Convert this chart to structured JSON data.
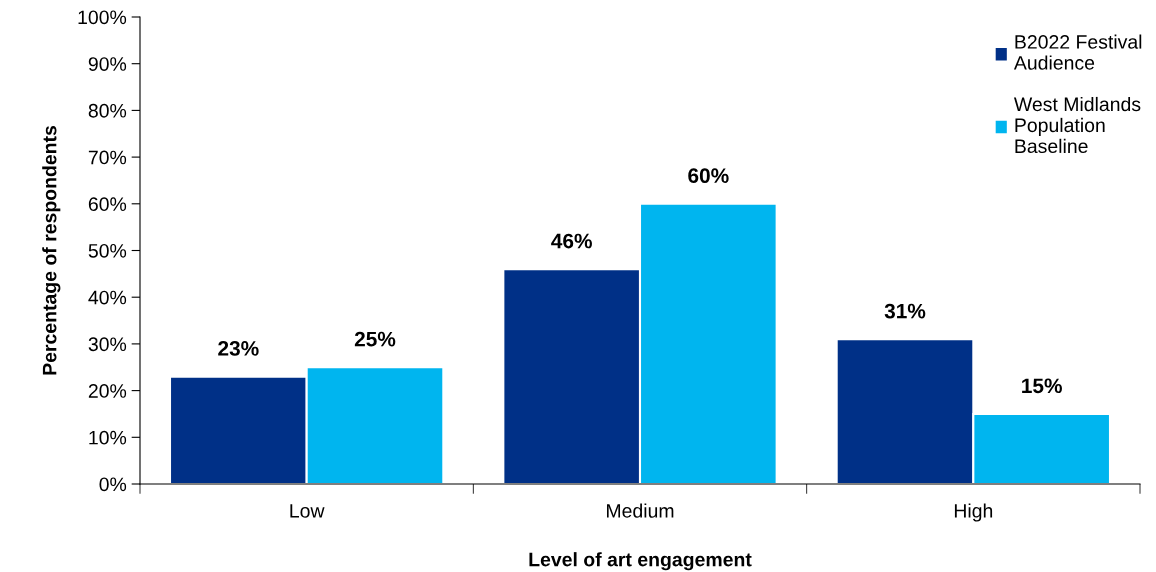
{
  "chart_data": {
    "type": "bar",
    "xlabel": "Level of art engagement",
    "ylabel": "Percentage of respondents",
    "categories": [
      "Low",
      "Medium",
      "High"
    ],
    "series": [
      {
        "name": "B2022 Festival Audience",
        "color": "#003087",
        "values": [
          23,
          46,
          31
        ],
        "value_labels": [
          "23%",
          "46%",
          "31%"
        ]
      },
      {
        "name": "West Midlands Population Baseline",
        "color": "#00b5ef",
        "values": [
          25,
          60,
          15
        ],
        "value_labels": [
          "25%",
          "60%",
          "15%"
        ]
      }
    ],
    "ylim": [
      0,
      100
    ],
    "yticks": [
      {
        "value": 0,
        "label": "0%"
      },
      {
        "value": 10,
        "label": "10%"
      },
      {
        "value": 20,
        "label": "20%"
      },
      {
        "value": 30,
        "label": "30%"
      },
      {
        "value": 40,
        "label": "40%"
      },
      {
        "value": 50,
        "label": "50%"
      },
      {
        "value": 60,
        "label": "60%"
      },
      {
        "value": 70,
        "label": "70%"
      },
      {
        "value": 80,
        "label": "80%"
      },
      {
        "value": 90,
        "label": "90%"
      },
      {
        "value": 100,
        "label": "100%"
      }
    ],
    "grid": false,
    "legend": "top right"
  }
}
